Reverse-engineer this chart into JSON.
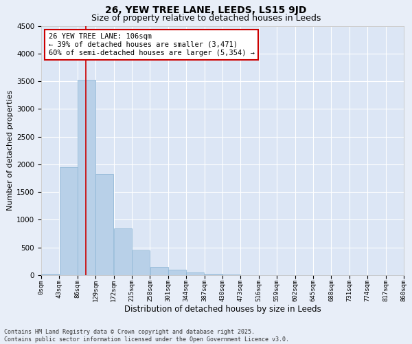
{
  "title": "26, YEW TREE LANE, LEEDS, LS15 9JD",
  "subtitle": "Size of property relative to detached houses in Leeds",
  "xlabel": "Distribution of detached houses by size in Leeds",
  "ylabel": "Number of detached properties",
  "bar_color": "#b8d0e8",
  "bar_edge_color": "#8ab4d4",
  "background_color": "#dce6f5",
  "fig_background_color": "#e8eef8",
  "grid_color": "#ffffff",
  "red_line_x": 106,
  "annotation_text": "26 YEW TREE LANE: 106sqm\n← 39% of detached houses are smaller (3,471)\n60% of semi-detached houses are larger (5,354) →",
  "annotation_box_color": "#ffffff",
  "annotation_box_edge": "#cc0000",
  "ylim": [
    0,
    4500
  ],
  "xlim": [
    0,
    860
  ],
  "bin_edges": [
    0,
    43,
    86,
    129,
    172,
    215,
    258,
    301,
    344,
    387,
    430,
    473,
    516,
    559,
    602,
    645,
    688,
    731,
    774,
    817,
    860
  ],
  "bar_heights": [
    25,
    1950,
    3530,
    1820,
    840,
    450,
    155,
    100,
    55,
    28,
    10,
    4,
    2,
    1,
    0,
    0,
    0,
    0,
    0,
    0
  ],
  "tick_labels": [
    "0sqm",
    "43sqm",
    "86sqm",
    "129sqm",
    "172sqm",
    "215sqm",
    "258sqm",
    "301sqm",
    "344sqm",
    "387sqm",
    "430sqm",
    "473sqm",
    "516sqm",
    "559sqm",
    "602sqm",
    "645sqm",
    "688sqm",
    "731sqm",
    "774sqm",
    "817sqm",
    "860sqm"
  ],
  "footer_text": "Contains HM Land Registry data © Crown copyright and database right 2025.\nContains public sector information licensed under the Open Government Licence v3.0.",
  "title_fontsize": 10,
  "subtitle_fontsize": 9,
  "xlabel_fontsize": 8.5,
  "ylabel_fontsize": 8,
  "tick_fontsize": 6.5,
  "annotation_fontsize": 7.5,
  "footer_fontsize": 6
}
